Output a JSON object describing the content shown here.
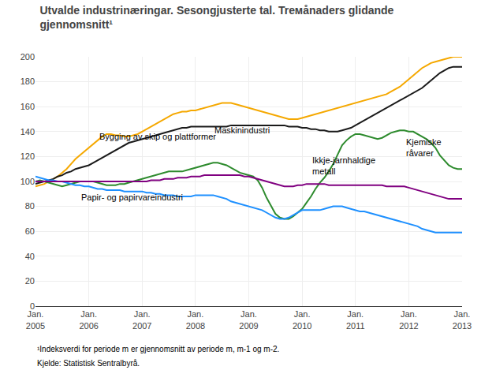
{
  "chart_data": {
    "type": "line",
    "title": "Utvalde industrinæringar. Sesongjusterte tal. Trемånaders glidande\ngjennomsnitt¹",
    "footnotes": [
      "¹Indeksverdi for periode m er gjennomsnitt av periode m, m-1 og m-2.",
      "Kjelde: Statistisk Sentralbyrå."
    ],
    "categories": [
      "Jan.\n2005",
      null,
      null,
      null,
      null,
      null,
      null,
      null,
      null,
      null,
      null,
      null,
      "Jan.\n2006",
      null,
      null,
      null,
      null,
      null,
      null,
      null,
      null,
      null,
      null,
      null,
      "Jan.\n2007",
      null,
      null,
      null,
      null,
      null,
      null,
      null,
      null,
      null,
      null,
      null,
      "Jan.\n2008",
      null,
      null,
      null,
      null,
      null,
      null,
      null,
      null,
      null,
      null,
      null,
      "Jan.\n2009",
      null,
      null,
      null,
      null,
      null,
      null,
      null,
      null,
      null,
      null,
      null,
      "Jan.\n2010",
      null,
      null,
      null,
      null,
      null,
      null,
      null,
      null,
      null,
      null,
      null,
      "Jan.\n2011",
      null,
      null,
      null,
      null,
      null,
      null,
      null,
      null,
      null,
      null,
      null,
      "Jan.\n2012",
      null,
      null,
      null,
      null,
      null,
      null,
      null,
      null,
      null,
      null,
      null,
      "Jan.\n2013"
    ],
    "series": [
      {
        "color": "#f5a800",
        "values": [
          96,
          97,
          98,
          100,
          102,
          104,
          107,
          110,
          114,
          118,
          121,
          124,
          127,
          130,
          133,
          136,
          138,
          138,
          137,
          137,
          136,
          136,
          137,
          138,
          140,
          142,
          144,
          146,
          148,
          150,
          152,
          154,
          155,
          156,
          156,
          157,
          157,
          158,
          159,
          160,
          161,
          162,
          163,
          163,
          163,
          162,
          161,
          160,
          159,
          158,
          157,
          156,
          155,
          154,
          153,
          152,
          151,
          150,
          150,
          150,
          151,
          152,
          153,
          154,
          155,
          156,
          157,
          158,
          159,
          160,
          161,
          162,
          163,
          164,
          165,
          166,
          167,
          168,
          169,
          170,
          172,
          174,
          176,
          179,
          182,
          185,
          188,
          191,
          193,
          195,
          196,
          197,
          198,
          199,
          200,
          200,
          200
        ]
      },
      {
        "color": "#1a1a1a",
        "values": [
          98,
          99,
          100,
          101,
          102,
          104,
          105,
          107,
          108,
          110,
          111,
          112,
          113,
          115,
          117,
          119,
          121,
          123,
          125,
          127,
          129,
          131,
          132,
          133,
          134,
          135,
          136,
          137,
          138,
          139,
          140,
          141,
          142,
          143,
          143,
          144,
          144,
          144,
          144,
          144,
          144,
          144,
          144,
          144,
          145,
          145,
          145,
          145,
          145,
          145,
          145,
          145,
          145,
          145,
          145,
          145,
          145,
          144,
          144,
          144,
          143,
          143,
          142,
          142,
          141,
          141,
          140,
          140,
          140,
          141,
          142,
          143,
          145,
          147,
          149,
          151,
          153,
          155,
          157,
          159,
          161,
          163,
          165,
          167,
          169,
          171,
          173,
          175,
          178,
          181,
          184,
          187,
          189,
          191,
          192,
          192,
          192
        ]
      },
      {
        "color": "#2e8b2e",
        "values": [
          100,
          101,
          100,
          99,
          98,
          97,
          96,
          97,
          98,
          99,
          100,
          100,
          100,
          100,
          99,
          98,
          97,
          97,
          97,
          98,
          98,
          99,
          100,
          101,
          102,
          103,
          104,
          105,
          106,
          107,
          108,
          108,
          108,
          108,
          109,
          110,
          111,
          112,
          113,
          114,
          115,
          115,
          114,
          113,
          111,
          109,
          107,
          106,
          105,
          104,
          101,
          95,
          87,
          80,
          74,
          71,
          70,
          70,
          72,
          75,
          78,
          83,
          88,
          94,
          99,
          103,
          108,
          114,
          122,
          129,
          133,
          136,
          138,
          138,
          137,
          136,
          135,
          134,
          135,
          137,
          139,
          140,
          141,
          141,
          140,
          140,
          138,
          136,
          134,
          131,
          127,
          121,
          117,
          113,
          111,
          110,
          110
        ]
      },
      {
        "color": "#1e90ff",
        "values": [
          104,
          103,
          102,
          101,
          101,
          100,
          100,
          99,
          98,
          97,
          97,
          96,
          96,
          95,
          94,
          94,
          93,
          93,
          93,
          93,
          92,
          92,
          92,
          92,
          92,
          91,
          91,
          90,
          90,
          89,
          89,
          89,
          88,
          88,
          88,
          88,
          89,
          89,
          89,
          89,
          89,
          88,
          87,
          86,
          84,
          83,
          82,
          81,
          80,
          79,
          78,
          77,
          75,
          73,
          71,
          70,
          70,
          71,
          73,
          75,
          77,
          77,
          77,
          77,
          77,
          78,
          79,
          80,
          80,
          80,
          79,
          78,
          77,
          76,
          76,
          75,
          74,
          73,
          72,
          71,
          70,
          69,
          68,
          67,
          66,
          65,
          64,
          62,
          61,
          60,
          59,
          59,
          59,
          59,
          59,
          59,
          59
        ]
      },
      {
        "color": "#800080",
        "values": [
          100,
          100,
          100,
          100,
          100,
          100,
          100,
          100,
          100,
          100,
          100,
          100,
          100,
          100,
          100,
          100,
          100,
          100,
          100,
          100,
          100,
          100,
          100,
          100,
          100,
          100,
          101,
          101,
          101,
          102,
          102,
          102,
          103,
          103,
          103,
          104,
          104,
          104,
          105,
          105,
          105,
          105,
          105,
          105,
          105,
          105,
          105,
          104,
          104,
          103,
          102,
          101,
          100,
          99,
          98,
          97,
          96,
          96,
          96,
          97,
          97,
          98,
          98,
          98,
          98,
          98,
          97,
          97,
          97,
          97,
          97,
          97,
          97,
          97,
          97,
          97,
          97,
          97,
          97,
          96,
          96,
          96,
          96,
          96,
          95,
          94,
          93,
          92,
          91,
          90,
          89,
          88,
          87,
          86,
          86,
          86,
          86
        ]
      }
    ],
    "annotations": [
      {
        "text": "Bygging av skip og plattformer",
        "x": 14,
        "y": 131
      },
      {
        "text": "Maskinindustri",
        "x": 40,
        "y": 136
      },
      {
        "text": "Ikkje-jarnhaldige\nmetall",
        "x": 62,
        "y": 103
      },
      {
        "text": "Papir- og papirvareindustri",
        "x": 10,
        "y": 82
      },
      {
        "text": "Kjemiske\nråvarer",
        "x": 83,
        "y": 118
      }
    ],
    "ylim": [
      0,
      200
    ],
    "yticks": [
      0,
      20,
      40,
      60,
      80,
      100,
      120,
      140,
      160,
      180,
      200
    ],
    "grid": true
  }
}
